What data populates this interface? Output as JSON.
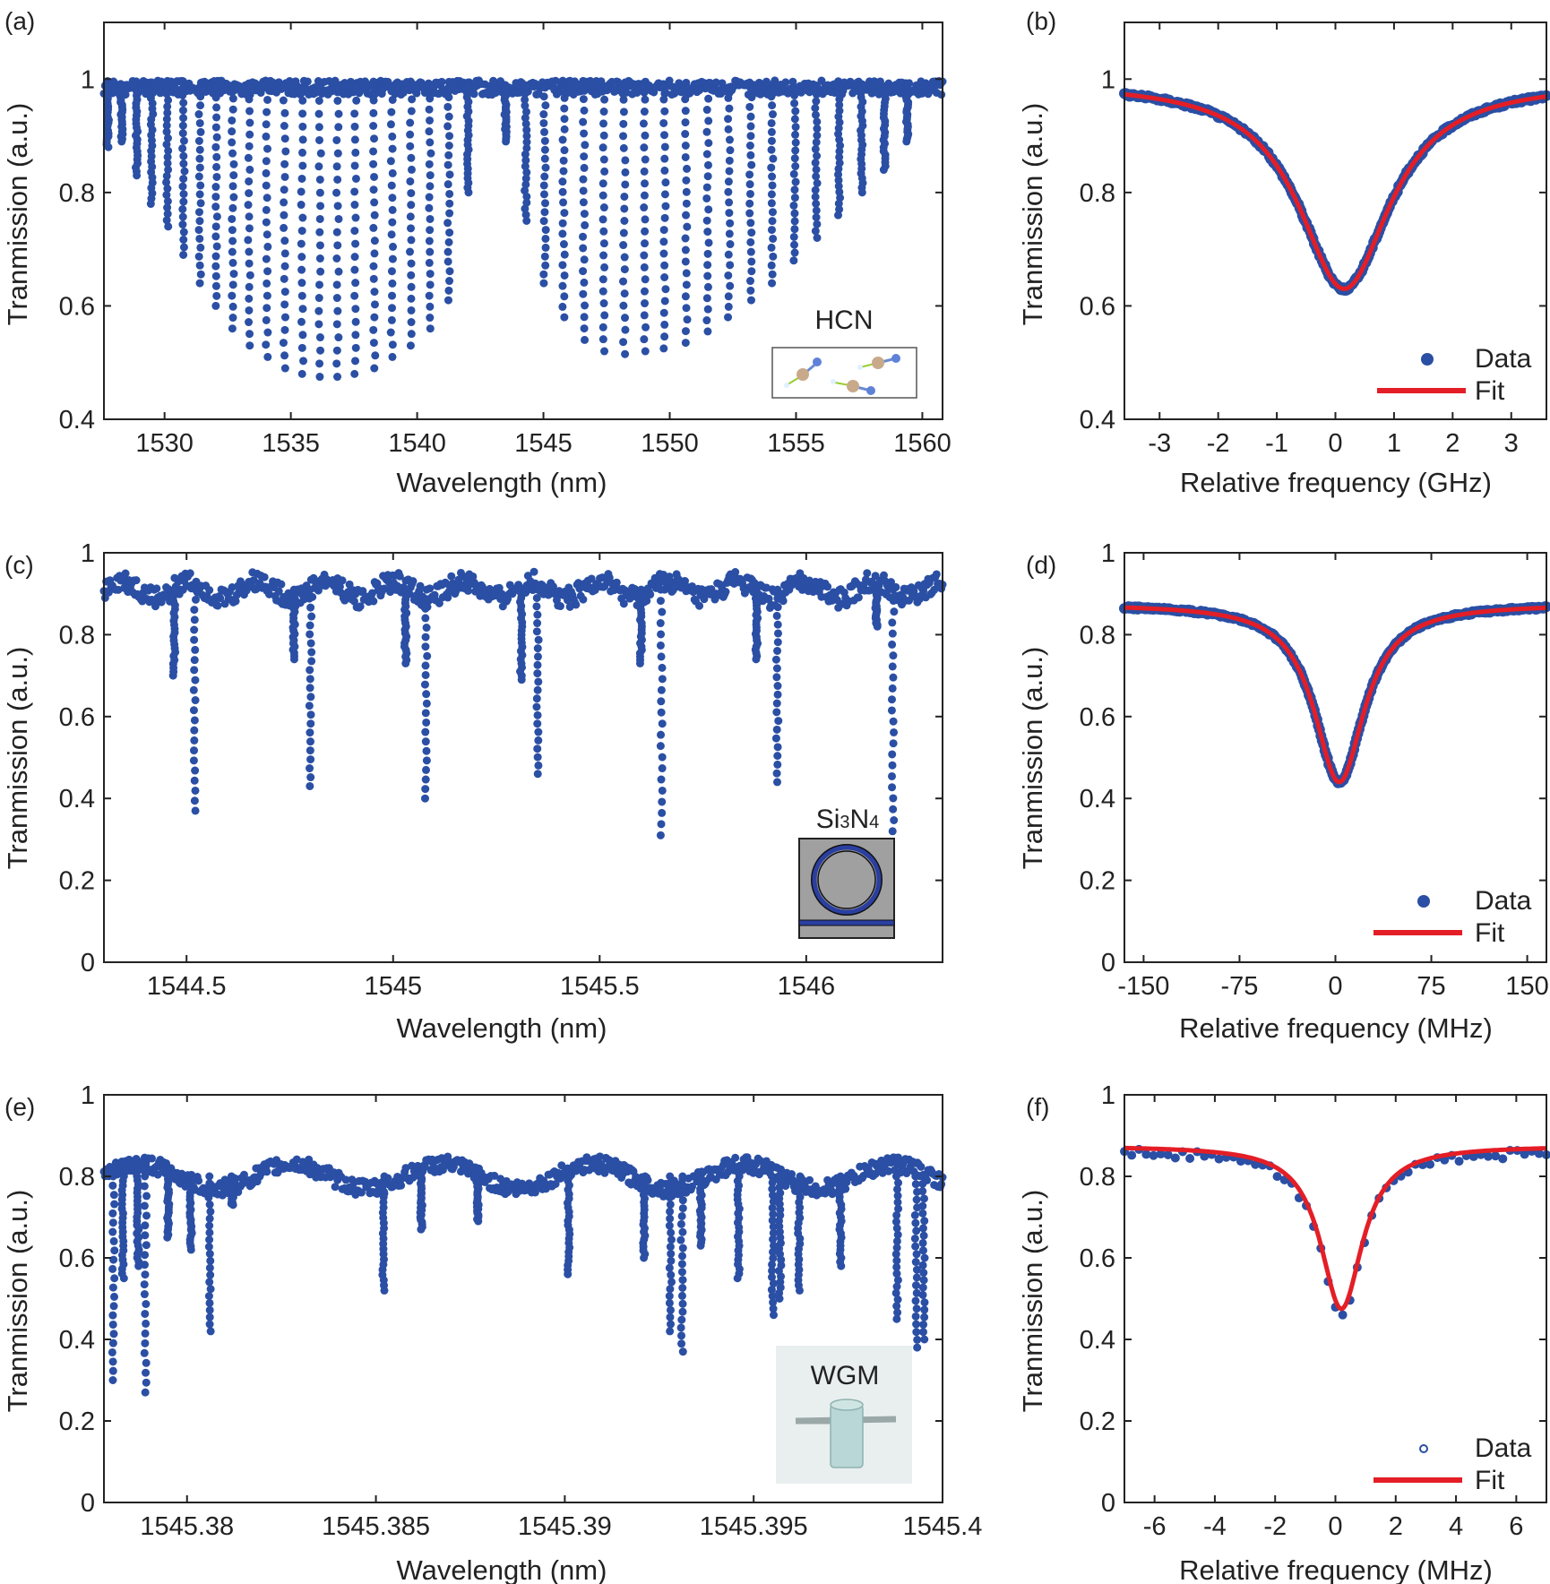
{
  "colors": {
    "data": "#2a4fa4",
    "fit": "#e41e26",
    "axis": "#222222",
    "inset_gray": "#a0a0a0",
    "inset_light": "#e9efef",
    "inset_cylinder": "#b8d7d6"
  },
  "chart_data": [
    {
      "id": "a",
      "type": "scatter",
      "panel_label": "(a)",
      "xlabel": "Wavelength (nm)",
      "ylabel": "Tranmission (a.u.)",
      "xlim": [
        1527.6,
        1560.8
      ],
      "ylim": [
        0.4,
        1.1
      ],
      "xticks": [
        1530,
        1535,
        1540,
        1545,
        1550,
        1555,
        1560
      ],
      "xtick_labels": [
        "1530",
        "1535",
        "1540",
        "1545",
        "1550",
        "1555",
        "1560"
      ],
      "yticks": [
        0.4,
        0.6,
        0.8,
        1.0
      ],
      "ytick_labels": [
        "0.4",
        "0.6",
        "0.8",
        "1"
      ],
      "baseline": 0.985,
      "dips": [
        {
          "x": 1527.75,
          "y": 0.88
        },
        {
          "x": 1528.3,
          "y": 0.89
        },
        {
          "x": 1528.9,
          "y": 0.83
        },
        {
          "x": 1529.5,
          "y": 0.78
        },
        {
          "x": 1530.1,
          "y": 0.74
        },
        {
          "x": 1530.75,
          "y": 0.69
        },
        {
          "x": 1531.4,
          "y": 0.64
        },
        {
          "x": 1532.05,
          "y": 0.6
        },
        {
          "x": 1532.7,
          "y": 0.56
        },
        {
          "x": 1533.35,
          "y": 0.53
        },
        {
          "x": 1534.05,
          "y": 0.51
        },
        {
          "x": 1534.75,
          "y": 0.49
        },
        {
          "x": 1535.45,
          "y": 0.48
        },
        {
          "x": 1536.15,
          "y": 0.475
        },
        {
          "x": 1536.85,
          "y": 0.475
        },
        {
          "x": 1537.55,
          "y": 0.48
        },
        {
          "x": 1538.3,
          "y": 0.49
        },
        {
          "x": 1539.0,
          "y": 0.51
        },
        {
          "x": 1539.75,
          "y": 0.53
        },
        {
          "x": 1540.5,
          "y": 0.56
        },
        {
          "x": 1541.25,
          "y": 0.61
        },
        {
          "x": 1542.0,
          "y": 0.8
        },
        {
          "x": 1543.5,
          "y": 0.89
        },
        {
          "x": 1544.3,
          "y": 0.75
        },
        {
          "x": 1545.05,
          "y": 0.64
        },
        {
          "x": 1545.8,
          "y": 0.58
        },
        {
          "x": 1546.6,
          "y": 0.54
        },
        {
          "x": 1547.4,
          "y": 0.52
        },
        {
          "x": 1548.2,
          "y": 0.515
        },
        {
          "x": 1549.0,
          "y": 0.52
        },
        {
          "x": 1549.8,
          "y": 0.525
        },
        {
          "x": 1550.65,
          "y": 0.535
        },
        {
          "x": 1551.5,
          "y": 0.555
        },
        {
          "x": 1552.35,
          "y": 0.58
        },
        {
          "x": 1553.2,
          "y": 0.61
        },
        {
          "x": 1554.05,
          "y": 0.64
        },
        {
          "x": 1554.95,
          "y": 0.68
        },
        {
          "x": 1555.8,
          "y": 0.72
        },
        {
          "x": 1556.7,
          "y": 0.76
        },
        {
          "x": 1557.6,
          "y": 0.8
        },
        {
          "x": 1558.5,
          "y": 0.84
        },
        {
          "x": 1559.4,
          "y": 0.89
        }
      ],
      "inset": {
        "kind": "molecule",
        "label": "HCN"
      }
    },
    {
      "id": "b",
      "type": "scatter+line",
      "panel_label": "(b)",
      "xlabel": "Relative frequency (GHz)",
      "ylabel": "Tranmission (a.u.)",
      "xlim": [
        -3.6,
        3.6
      ],
      "ylim": [
        0.4,
        1.1
      ],
      "xticks": [
        -3,
        -2,
        -1,
        0,
        1,
        2,
        3
      ],
      "xtick_labels": [
        "-3",
        "-2",
        "-1",
        "0",
        "1",
        "2",
        "3"
      ],
      "yticks": [
        0.4,
        0.6,
        0.8,
        1.0
      ],
      "ytick_labels": [
        "0.4",
        "0.6",
        "0.8",
        "1"
      ],
      "model": {
        "baseline": 0.995,
        "depth": 0.365,
        "center": 0.15,
        "halfwidth": 0.95
      },
      "legend": {
        "data_label": "Data",
        "fit_label": "Fit",
        "marker": "filled",
        "position": "bottom-right"
      }
    },
    {
      "id": "c",
      "type": "scatter",
      "panel_label": "(c)",
      "xlabel": "Wavelength (nm)",
      "ylabel": "Tranmission (a.u.)",
      "xlim": [
        1544.3,
        1546.33
      ],
      "ylim": [
        0,
        1.0
      ],
      "xticks": [
        1544.5,
        1545,
        1545.5,
        1546
      ],
      "xtick_labels": [
        "1544.5",
        "1545",
        "1545.5",
        "1546"
      ],
      "yticks": [
        0,
        0.2,
        0.4,
        0.6,
        0.8,
        1.0
      ],
      "ytick_labels": [
        "0",
        "0.2",
        "0.4",
        "0.6",
        "0.8",
        "1"
      ],
      "baseline": 0.91,
      "dips": [
        {
          "x": 1544.47,
          "y": 0.7
        },
        {
          "x": 1544.52,
          "y": 0.37
        },
        {
          "x": 1544.76,
          "y": 0.74
        },
        {
          "x": 1544.8,
          "y": 0.43
        },
        {
          "x": 1545.03,
          "y": 0.73
        },
        {
          "x": 1545.08,
          "y": 0.4
        },
        {
          "x": 1545.31,
          "y": 0.69
        },
        {
          "x": 1545.35,
          "y": 0.46
        },
        {
          "x": 1545.6,
          "y": 0.73
        },
        {
          "x": 1545.65,
          "y": 0.31
        },
        {
          "x": 1545.88,
          "y": 0.74
        },
        {
          "x": 1545.93,
          "y": 0.44
        },
        {
          "x": 1546.17,
          "y": 0.82
        },
        {
          "x": 1546.21,
          "y": 0.32
        }
      ],
      "inset": {
        "kind": "ring",
        "label_main": "Si",
        "label_sub1": "3",
        "label_mid": "N",
        "label_sub2": "4"
      }
    },
    {
      "id": "d",
      "type": "scatter+line",
      "panel_label": "(d)",
      "xlabel": "Relative frequency (MHz)",
      "ylabel": "Tranmission (a.u.)",
      "xlim": [
        -165,
        165
      ],
      "ylim": [
        0,
        1.0
      ],
      "xticks": [
        -150,
        -75,
        0,
        75,
        150
      ],
      "xtick_labels": [
        "-150",
        "-75",
        "0",
        "75",
        "150"
      ],
      "yticks": [
        0,
        0.2,
        0.4,
        0.6,
        0.8,
        1.0
      ],
      "ytick_labels": [
        "0",
        "0.2",
        "0.4",
        "0.6",
        "0.8",
        "1"
      ],
      "model": {
        "baseline": 0.875,
        "depth": 0.435,
        "center": 3,
        "halfwidth": 24
      },
      "legend": {
        "data_label": "Data",
        "fit_label": "Fit",
        "marker": "filled",
        "position": "bottom-right"
      }
    },
    {
      "id": "e",
      "type": "scatter",
      "panel_label": "(e)",
      "xlabel": "Wavelength (nm)",
      "ylabel": "Tranmission (a.u.)",
      "xlim": [
        1545.3778,
        1545.4
      ],
      "ylim": [
        0,
        1.0
      ],
      "xticks": [
        1545.38,
        1545.385,
        1545.39,
        1545.395,
        1545.4
      ],
      "xtick_labels": [
        "1545.38",
        "1545.385",
        "1545.39",
        "1545.395",
        "1545.4"
      ],
      "yticks": [
        0,
        0.2,
        0.4,
        0.6,
        0.8,
        1.0
      ],
      "ytick_labels": [
        "0",
        "0.2",
        "0.4",
        "0.6",
        "0.8",
        "1"
      ],
      "dips": [
        {
          "x": 1545.37805,
          "y": 0.3
        },
        {
          "x": 1545.3783,
          "y": 0.55
        },
        {
          "x": 1545.3787,
          "y": 0.58
        },
        {
          "x": 1545.3789,
          "y": 0.27
        },
        {
          "x": 1545.3795,
          "y": 0.65
        },
        {
          "x": 1545.3801,
          "y": 0.62
        },
        {
          "x": 1545.3806,
          "y": 0.42
        },
        {
          "x": 1545.3812,
          "y": 0.73
        },
        {
          "x": 1545.3852,
          "y": 0.52
        },
        {
          "x": 1545.3862,
          "y": 0.67
        },
        {
          "x": 1545.3877,
          "y": 0.69
        },
        {
          "x": 1545.3901,
          "y": 0.56
        },
        {
          "x": 1545.3921,
          "y": 0.6
        },
        {
          "x": 1545.3928,
          "y": 0.42
        },
        {
          "x": 1545.3931,
          "y": 0.37
        },
        {
          "x": 1545.3936,
          "y": 0.63
        },
        {
          "x": 1545.3946,
          "y": 0.55
        },
        {
          "x": 1545.3955,
          "y": 0.46
        },
        {
          "x": 1545.3957,
          "y": 0.5
        },
        {
          "x": 1545.3962,
          "y": 0.52
        },
        {
          "x": 1545.3973,
          "y": 0.58
        },
        {
          "x": 1545.3988,
          "y": 0.45
        },
        {
          "x": 1545.3993,
          "y": 0.38
        },
        {
          "x": 1545.3995,
          "y": 0.4
        }
      ],
      "inset": {
        "kind": "wgm",
        "label": "WGM"
      }
    },
    {
      "id": "f",
      "type": "scatter+line",
      "panel_label": "(f)",
      "xlabel": "Relative frequency (MHz)",
      "ylabel": "Tranmission (a.u.)",
      "xlim": [
        -7,
        7
      ],
      "ylim": [
        0,
        1.0
      ],
      "xticks": [
        -6,
        -4,
        -2,
        0,
        2,
        4,
        6
      ],
      "xtick_labels": [
        "-6",
        "-4",
        "-2",
        "0",
        "2",
        "4",
        "6"
      ],
      "yticks": [
        0,
        0.2,
        0.4,
        0.6,
        0.8,
        1.0
      ],
      "ytick_labels": [
        "0",
        "0.2",
        "0.4",
        "0.6",
        "0.8",
        "1"
      ],
      "model": {
        "baseline": 0.875,
        "depth": 0.4,
        "center": 0.2,
        "halfwidth": 0.85
      },
      "legend": {
        "data_label": "Data",
        "fit_label": "Fit",
        "marker": "open",
        "position": "bottom-right"
      }
    }
  ]
}
